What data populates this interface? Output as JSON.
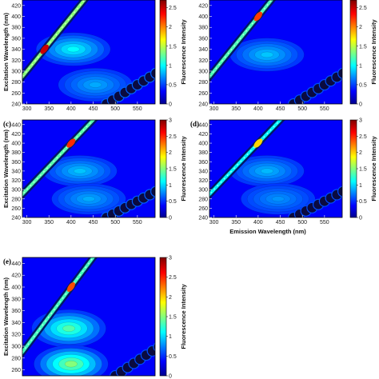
{
  "chart_data": [
    {
      "type": "heatmap",
      "panel_label": "",
      "xlabel": "",
      "ylabel": "Excitation Wavelength (nm)",
      "colorbar_label": "Fluorescence Intensity",
      "x_ticks": [
        "300",
        "350",
        "400",
        "450",
        "500",
        "550"
      ],
      "y_ticks": [
        "240",
        "260",
        "280",
        "300",
        "320",
        "340",
        "360",
        "380",
        "400",
        "420"
      ],
      "cbar_ticks": [
        "0",
        "0.5",
        "1",
        "1.5",
        "2",
        "2.5"
      ],
      "xlim": [
        290,
        590
      ],
      "ylim": [
        240,
        430
      ],
      "clim": [
        0,
        2.7
      ],
      "peaks": [
        {
          "em": 340,
          "ex": 340,
          "intensity": 2.5,
          "kind": "rayleigh"
        },
        {
          "em": 405,
          "ex": 340,
          "intensity": 0.7,
          "kind": "fluorophore"
        },
        {
          "em": 455,
          "ex": 275,
          "intensity": 0.4,
          "kind": "fluorophore"
        },
        {
          "em": 525,
          "ex": 262,
          "intensity": 1.2,
          "kind": "second-order"
        }
      ]
    },
    {
      "type": "heatmap",
      "panel_label": "",
      "xlabel": "",
      "ylabel": "",
      "colorbar_label": "Fluorescence Intensity",
      "x_ticks": [
        "300",
        "350",
        "400",
        "450",
        "500",
        "550"
      ],
      "y_ticks": [
        "240",
        "260",
        "280",
        "300",
        "320",
        "340",
        "360",
        "380",
        "400",
        "420"
      ],
      "cbar_ticks": [
        "0",
        "0.5",
        "1",
        "1.5",
        "2",
        "2.5"
      ],
      "xlim": [
        290,
        590
      ],
      "ylim": [
        240,
        430
      ],
      "clim": [
        0,
        2.7
      ],
      "peaks": [
        {
          "em": 400,
          "ex": 400,
          "intensity": 2.2,
          "kind": "rayleigh"
        },
        {
          "em": 420,
          "ex": 330,
          "intensity": 0.5,
          "kind": "fluorophore"
        },
        {
          "em": 540,
          "ex": 265,
          "intensity": 1.1,
          "kind": "second-order"
        }
      ]
    },
    {
      "type": "heatmap",
      "panel_label": "(c)",
      "xlabel": "",
      "ylabel": "Excitation Wavelength (nm)",
      "colorbar_label": "Fluorescence Intensity",
      "x_ticks": [
        "300",
        "350",
        "400",
        "450",
        "500",
        "550"
      ],
      "y_ticks": [
        "240",
        "260",
        "280",
        "300",
        "320",
        "340",
        "360",
        "380",
        "400",
        "420",
        "440"
      ],
      "cbar_ticks": [
        "0",
        "0.5",
        "1",
        "1.5",
        "2",
        "2.5",
        "3"
      ],
      "xlim": [
        290,
        590
      ],
      "ylim": [
        240,
        450
      ],
      "clim": [
        0,
        3
      ],
      "peaks": [
        {
          "em": 400,
          "ex": 400,
          "intensity": 2.5,
          "kind": "rayleigh"
        },
        {
          "em": 420,
          "ex": 340,
          "intensity": 0.55,
          "kind": "fluorophore"
        },
        {
          "em": 440,
          "ex": 280,
          "intensity": 0.45,
          "kind": "fluorophore"
        },
        {
          "em": 530,
          "ex": 262,
          "intensity": 1.3,
          "kind": "second-order"
        }
      ]
    },
    {
      "type": "heatmap",
      "panel_label": "(d)",
      "xlabel": "Emission Wavelength (nm)",
      "ylabel": "",
      "colorbar_label": "Fluorescence Intensity",
      "x_ticks": [
        "300",
        "350",
        "400",
        "450",
        "500",
        "550"
      ],
      "y_ticks": [
        "240",
        "260",
        "280",
        "300",
        "320",
        "340",
        "360",
        "380",
        "400",
        "420",
        "440"
      ],
      "cbar_ticks": [
        "0",
        "0.5",
        "1",
        "1.5",
        "2",
        "2.5",
        "3"
      ],
      "xlim": [
        290,
        590
      ],
      "ylim": [
        240,
        450
      ],
      "clim": [
        0,
        3
      ],
      "peaks": [
        {
          "em": 400,
          "ex": 400,
          "intensity": 2.0,
          "kind": "rayleigh"
        },
        {
          "em": 420,
          "ex": 340,
          "intensity": 0.5,
          "kind": "fluorophore"
        },
        {
          "em": 445,
          "ex": 280,
          "intensity": 0.35,
          "kind": "fluorophore"
        },
        {
          "em": 540,
          "ex": 262,
          "intensity": 1.2,
          "kind": "second-order"
        }
      ]
    },
    {
      "type": "heatmap",
      "panel_label": "(e)",
      "xlabel": "",
      "ylabel": "Excitation Wavelength (nm)",
      "colorbar_label": "Fluorescence Intensity",
      "x_ticks": [],
      "y_ticks": [
        "260",
        "280",
        "300",
        "320",
        "340",
        "360",
        "380",
        "400",
        "420",
        "440"
      ],
      "cbar_ticks": [
        "0",
        "0.5",
        "1",
        "1.5",
        "2",
        "2.5",
        "3"
      ],
      "xlim": [
        290,
        590
      ],
      "ylim": [
        250,
        450
      ],
      "clim": [
        0,
        3
      ],
      "peaks": [
        {
          "em": 400,
          "ex": 400,
          "intensity": 2.4,
          "kind": "rayleigh"
        },
        {
          "em": 395,
          "ex": 330,
          "intensity": 1.1,
          "kind": "fluorophore"
        },
        {
          "em": 400,
          "ex": 270,
          "intensity": 1.3,
          "kind": "fluorophore"
        },
        {
          "em": 540,
          "ex": 262,
          "intensity": 1.2,
          "kind": "second-order"
        }
      ]
    }
  ]
}
